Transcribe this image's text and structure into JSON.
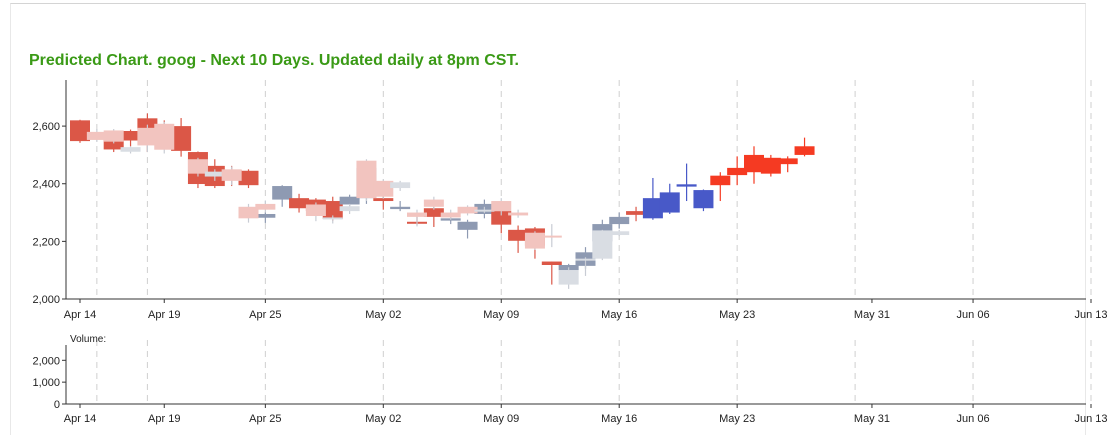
{
  "title": "Predicted Chart. goog - Next 10 Days. Updated daily at 8pm CST.",
  "chart_data": [
    {
      "type": "candlestick",
      "name": "price",
      "ylim": [
        2000,
        2760
      ],
      "y_ticks": [
        2000,
        2200,
        2400,
        2600
      ],
      "y_tick_labels": [
        "2,000",
        "2,200",
        "2,400",
        "2,600"
      ],
      "x_tick_labels": [
        {
          "label": "Apr 14",
          "day": 0
        },
        {
          "label": "Apr 19",
          "day": 5
        },
        {
          "label": "Apr 25",
          "day": 11
        },
        {
          "label": "May 02",
          "day": 18
        },
        {
          "label": "May 09",
          "day": 25
        },
        {
          "label": "May 16",
          "day": 32
        },
        {
          "label": "May 23",
          "day": 39
        },
        {
          "label": "May 31",
          "day": 47
        },
        {
          "label": "Jun 06",
          "day": 53
        },
        {
          "label": "Jun 13",
          "day": 60
        }
      ],
      "gridlines": [
        1,
        4,
        11,
        18,
        25,
        32,
        39,
        46,
        53,
        60
      ],
      "colors": {
        "up": "#8e9ab2",
        "down": "#db5747",
        "up_faint": "#d9dde3",
        "down_faint": "#f2c4bf",
        "pred_up": "#4859c8",
        "pred_down": "#f53a22",
        "wick_faint": "#c8ccd4"
      },
      "series": [
        {
          "name": "actual",
          "candles": [
            {
              "day": 0,
              "o": 2620,
              "c": 2548,
              "h": 2622,
              "l": 2542
            },
            {
              "day": 2,
              "o": 2557,
              "c": 2519,
              "h": 2580,
              "l": 2510
            },
            {
              "day": 3,
              "o": 2583,
              "c": 2550,
              "h": 2588,
              "l": 2530
            },
            {
              "day": 4,
              "o": 2627,
              "c": 2589,
              "h": 2644,
              "l": 2510
            },
            {
              "day": 5,
              "o": 2592,
              "c": 2562,
              "h": 2620,
              "l": 2535
            },
            {
              "day": 6,
              "o": 2600,
              "c": 2514,
              "h": 2628,
              "l": 2494
            },
            {
              "day": 7,
              "o": 2510,
              "c": 2399,
              "h": 2512,
              "l": 2385
            },
            {
              "day": 8,
              "o": 2462,
              "c": 2392,
              "h": 2485,
              "l": 2385
            },
            {
              "day": 9,
              "o": 2448,
              "c": 2415,
              "h": 2462,
              "l": 2392
            },
            {
              "day": 10,
              "o": 2445,
              "c": 2395,
              "h": 2450,
              "l": 2385
            },
            {
              "day": 11,
              "o": 2282,
              "c": 2295,
              "h": 2300,
              "l": 2264
            },
            {
              "day": 12,
              "o": 2345,
              "c": 2392,
              "h": 2395,
              "l": 2320
            },
            {
              "day": 13,
              "o": 2350,
              "c": 2315,
              "h": 2365,
              "l": 2300
            },
            {
              "day": 14,
              "o": 2345,
              "c": 2305,
              "h": 2350,
              "l": 2298
            },
            {
              "day": 15,
              "o": 2340,
              "c": 2278,
              "h": 2355,
              "l": 2272
            },
            {
              "day": 16,
              "o": 2328,
              "c": 2355,
              "h": 2362,
              "l": 2315
            },
            {
              "day": 17,
              "o": 2350,
              "c": 2455,
              "h": 2470,
              "l": 2330
            },
            {
              "day": 18,
              "o": 2350,
              "c": 2340,
              "h": 2365,
              "l": 2310
            },
            {
              "day": 19,
              "o": 2312,
              "c": 2320,
              "h": 2340,
              "l": 2305
            },
            {
              "day": 20,
              "o": 2268,
              "c": 2264,
              "h": 2290,
              "l": 2258
            },
            {
              "day": 21,
              "o": 2315,
              "c": 2285,
              "h": 2320,
              "l": 2250
            },
            {
              "day": 22,
              "o": 2272,
              "c": 2280,
              "h": 2300,
              "l": 2260
            },
            {
              "day": 23,
              "o": 2240,
              "c": 2268,
              "h": 2275,
              "l": 2210
            },
            {
              "day": 24,
              "o": 2295,
              "c": 2330,
              "h": 2345,
              "l": 2280
            },
            {
              "day": 25,
              "o": 2305,
              "c": 2258,
              "h": 2305,
              "l": 2228
            },
            {
              "day": 26,
              "o": 2240,
              "c": 2202,
              "h": 2255,
              "l": 2160
            },
            {
              "day": 27,
              "o": 2245,
              "c": 2185,
              "h": 2250,
              "l": 2140
            },
            {
              "day": 28,
              "o": 2130,
              "c": 2118,
              "h": 2130,
              "l": 2050
            },
            {
              "day": 29,
              "o": 2100,
              "c": 2118,
              "h": 2122,
              "l": 2090
            },
            {
              "day": 30,
              "o": 2115,
              "c": 2162,
              "h": 2180,
              "l": 2105
            },
            {
              "day": 31,
              "o": 2200,
              "c": 2260,
              "h": 2275,
              "l": 2190
            },
            {
              "day": 32,
              "o": 2260,
              "c": 2285,
              "h": 2300,
              "l": 2245
            },
            {
              "day": 33,
              "o": 2305,
              "c": 2292,
              "h": 2320,
              "l": 2270
            }
          ]
        },
        {
          "name": "prior_forecast",
          "candles": [
            {
              "day": 1,
              "o": 2580,
              "c": 2552,
              "h": 2590,
              "l": 2545
            },
            {
              "day": 2,
              "o": 2585,
              "c": 2546,
              "h": 2590,
              "l": 2540
            },
            {
              "day": 3,
              "o": 2511,
              "c": 2527,
              "h": 2530,
              "l": 2505
            },
            {
              "day": 4,
              "o": 2594,
              "c": 2533,
              "h": 2605,
              "l": 2510
            },
            {
              "day": 5,
              "o": 2608,
              "c": 2518,
              "h": 2615,
              "l": 2505
            },
            {
              "day": 7,
              "o": 2485,
              "c": 2435,
              "h": 2490,
              "l": 2425
            },
            {
              "day": 8,
              "o": 2425,
              "c": 2442,
              "h": 2450,
              "l": 2410
            },
            {
              "day": 9,
              "o": 2450,
              "c": 2410,
              "h": 2460,
              "l": 2395
            },
            {
              "day": 10,
              "o": 2320,
              "c": 2280,
              "h": 2330,
              "l": 2265
            },
            {
              "day": 11,
              "o": 2330,
              "c": 2310,
              "h": 2342,
              "l": 2300
            },
            {
              "day": 14,
              "o": 2328,
              "c": 2288,
              "h": 2335,
              "l": 2270
            },
            {
              "day": 15,
              "o": 2280,
              "c": 2283,
              "h": 2290,
              "l": 2262
            },
            {
              "day": 16,
              "o": 2305,
              "c": 2322,
              "h": 2330,
              "l": 2295
            },
            {
              "day": 17,
              "o": 2480,
              "c": 2350,
              "h": 2485,
              "l": 2340
            },
            {
              "day": 18,
              "o": 2410,
              "c": 2355,
              "h": 2415,
              "l": 2348
            },
            {
              "day": 19,
              "o": 2385,
              "c": 2405,
              "h": 2410,
              "l": 2375
            },
            {
              "day": 20,
              "o": 2300,
              "c": 2285,
              "h": 2310,
              "l": 2252
            },
            {
              "day": 21,
              "o": 2345,
              "c": 2320,
              "h": 2355,
              "l": 2310
            },
            {
              "day": 22,
              "o": 2300,
              "c": 2283,
              "h": 2310,
              "l": 2275
            },
            {
              "day": 23,
              "o": 2320,
              "c": 2297,
              "h": 2325,
              "l": 2290
            },
            {
              "day": 24,
              "o": 2305,
              "c": 2310,
              "h": 2320,
              "l": 2298
            },
            {
              "day": 25,
              "o": 2340,
              "c": 2305,
              "h": 2350,
              "l": 2290
            },
            {
              "day": 26,
              "o": 2300,
              "c": 2290,
              "h": 2310,
              "l": 2282
            },
            {
              "day": 27,
              "o": 2230,
              "c": 2175,
              "h": 2235,
              "l": 2170
            },
            {
              "day": 28,
              "o": 2220,
              "c": 2218,
              "h": 2260,
              "l": 2180
            },
            {
              "day": 29,
              "o": 2050,
              "c": 2100,
              "h": 2110,
              "l": 2035
            },
            {
              "day": 30,
              "o": 2135,
              "c": 2140,
              "h": 2145,
              "l": 2080
            },
            {
              "day": 31,
              "o": 2140,
              "c": 2238,
              "h": 2240,
              "l": 2135
            },
            {
              "day": 32,
              "o": 2222,
              "c": 2235,
              "h": 2240,
              "l": 2218
            }
          ]
        },
        {
          "name": "prediction",
          "candles": [
            {
              "day": 34,
              "o": 2280,
              "c": 2350,
              "h": 2420,
              "l": 2275
            },
            {
              "day": 35,
              "o": 2300,
              "c": 2370,
              "h": 2400,
              "l": 2295
            },
            {
              "day": 36,
              "o": 2390,
              "c": 2398,
              "h": 2470,
              "l": 2340
            },
            {
              "day": 37,
              "o": 2315,
              "c": 2378,
              "h": 2380,
              "l": 2305
            },
            {
              "day": 38,
              "o": 2428,
              "c": 2395,
              "h": 2440,
              "l": 2340
            },
            {
              "day": 39,
              "o": 2455,
              "c": 2430,
              "h": 2495,
              "l": 2395
            },
            {
              "day": 40,
              "o": 2500,
              "c": 2440,
              "h": 2530,
              "l": 2400
            },
            {
              "day": 41,
              "o": 2490,
              "c": 2435,
              "h": 2500,
              "l": 2425
            },
            {
              "day": 42,
              "o": 2488,
              "c": 2468,
              "h": 2495,
              "l": 2440
            },
            {
              "day": 43,
              "o": 2530,
              "c": 2500,
              "h": 2560,
              "l": 2495
            }
          ]
        }
      ]
    },
    {
      "type": "bar",
      "name": "volume",
      "label": "Volume:",
      "ylim": [
        0,
        2700
      ],
      "y_ticks": [
        0,
        1000,
        2000
      ],
      "y_tick_labels": [
        "0",
        "1,000",
        "2,000"
      ],
      "x_tick_labels": [
        "Apr 14",
        "Apr 19",
        "Apr 25",
        "May 02",
        "May 09",
        "May 16",
        "May 23",
        "May 31",
        "Jun 06",
        "Jun 13"
      ],
      "values": []
    }
  ]
}
